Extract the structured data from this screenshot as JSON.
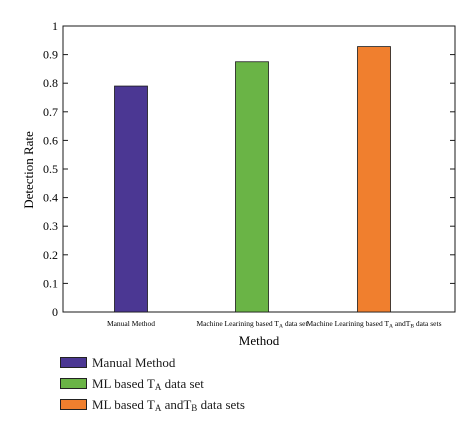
{
  "chart_data": {
    "type": "bar",
    "ylabel": "Detection Rate",
    "xlabel": "Method",
    "ylim": [
      0,
      1
    ],
    "yticks": [
      "0",
      "0.1",
      "0.2",
      "0.3",
      "0.4",
      "0.5",
      "0.6",
      "0.7",
      "0.8",
      "0.9",
      "1"
    ],
    "categories": [
      {
        "label": "Manual Method",
        "sub": "",
        "suffix": ""
      },
      {
        "label": "Machine Learining based T",
        "sub": "A",
        "suffix": " data set"
      },
      {
        "label": "Machine Learining based T",
        "sub": "A",
        "suffix": " andT",
        "sub2": "B",
        "suffix2": " data sets"
      }
    ],
    "values": [
      0.79,
      0.875,
      0.928
    ],
    "colors": [
      "#4b3793",
      "#6ab446",
      "#f07f2e"
    ],
    "legend": [
      {
        "label": "Manual Method",
        "sub": "",
        "suffix": ""
      },
      {
        "label": "ML based T",
        "sub": "A",
        "suffix": " data set"
      },
      {
        "label": "ML based T",
        "sub": "A",
        "suffix": " andT",
        "sub2": "B",
        "suffix2": " data sets"
      }
    ],
    "grid": false,
    "legend_position": "bottom-left"
  }
}
